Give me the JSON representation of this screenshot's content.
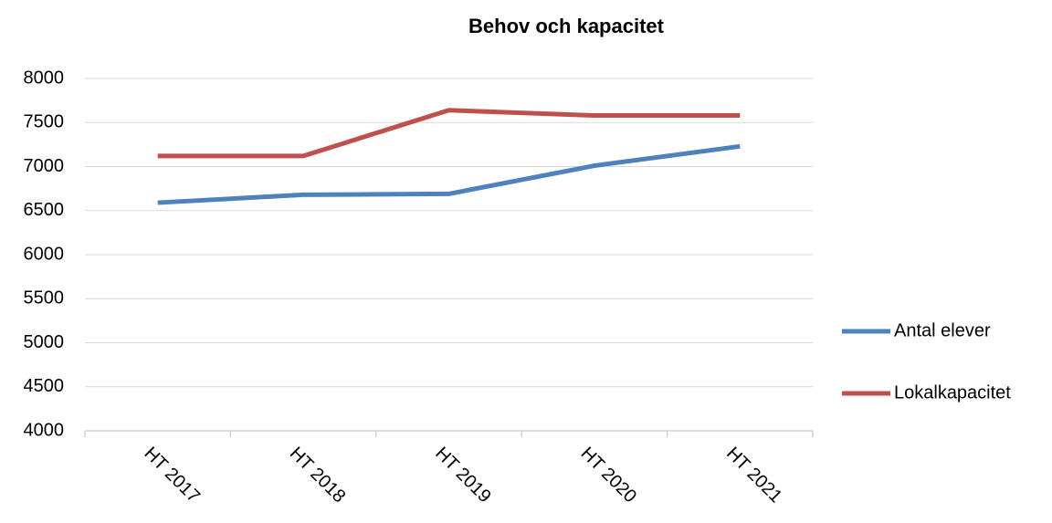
{
  "chart_data": {
    "type": "line",
    "title": "Behov och kapacitet",
    "categories": [
      "HT 2017",
      "HT 2018",
      "HT 2019",
      "HT 2020",
      "HT 2021"
    ],
    "series": [
      {
        "name": "Antal elever",
        "color": "#4f81bd",
        "values": [
          6590,
          6680,
          6690,
          7010,
          7230
        ]
      },
      {
        "name": "Lokalkapacitet",
        "color": "#c0504d",
        "values": [
          7120,
          7120,
          7640,
          7580,
          7580
        ]
      }
    ],
    "ylim": [
      4000,
      8000
    ],
    "yticks": [
      4000,
      4500,
      5000,
      5500,
      6000,
      6500,
      7000,
      7500,
      8000
    ],
    "grid": true,
    "legend": "right"
  }
}
